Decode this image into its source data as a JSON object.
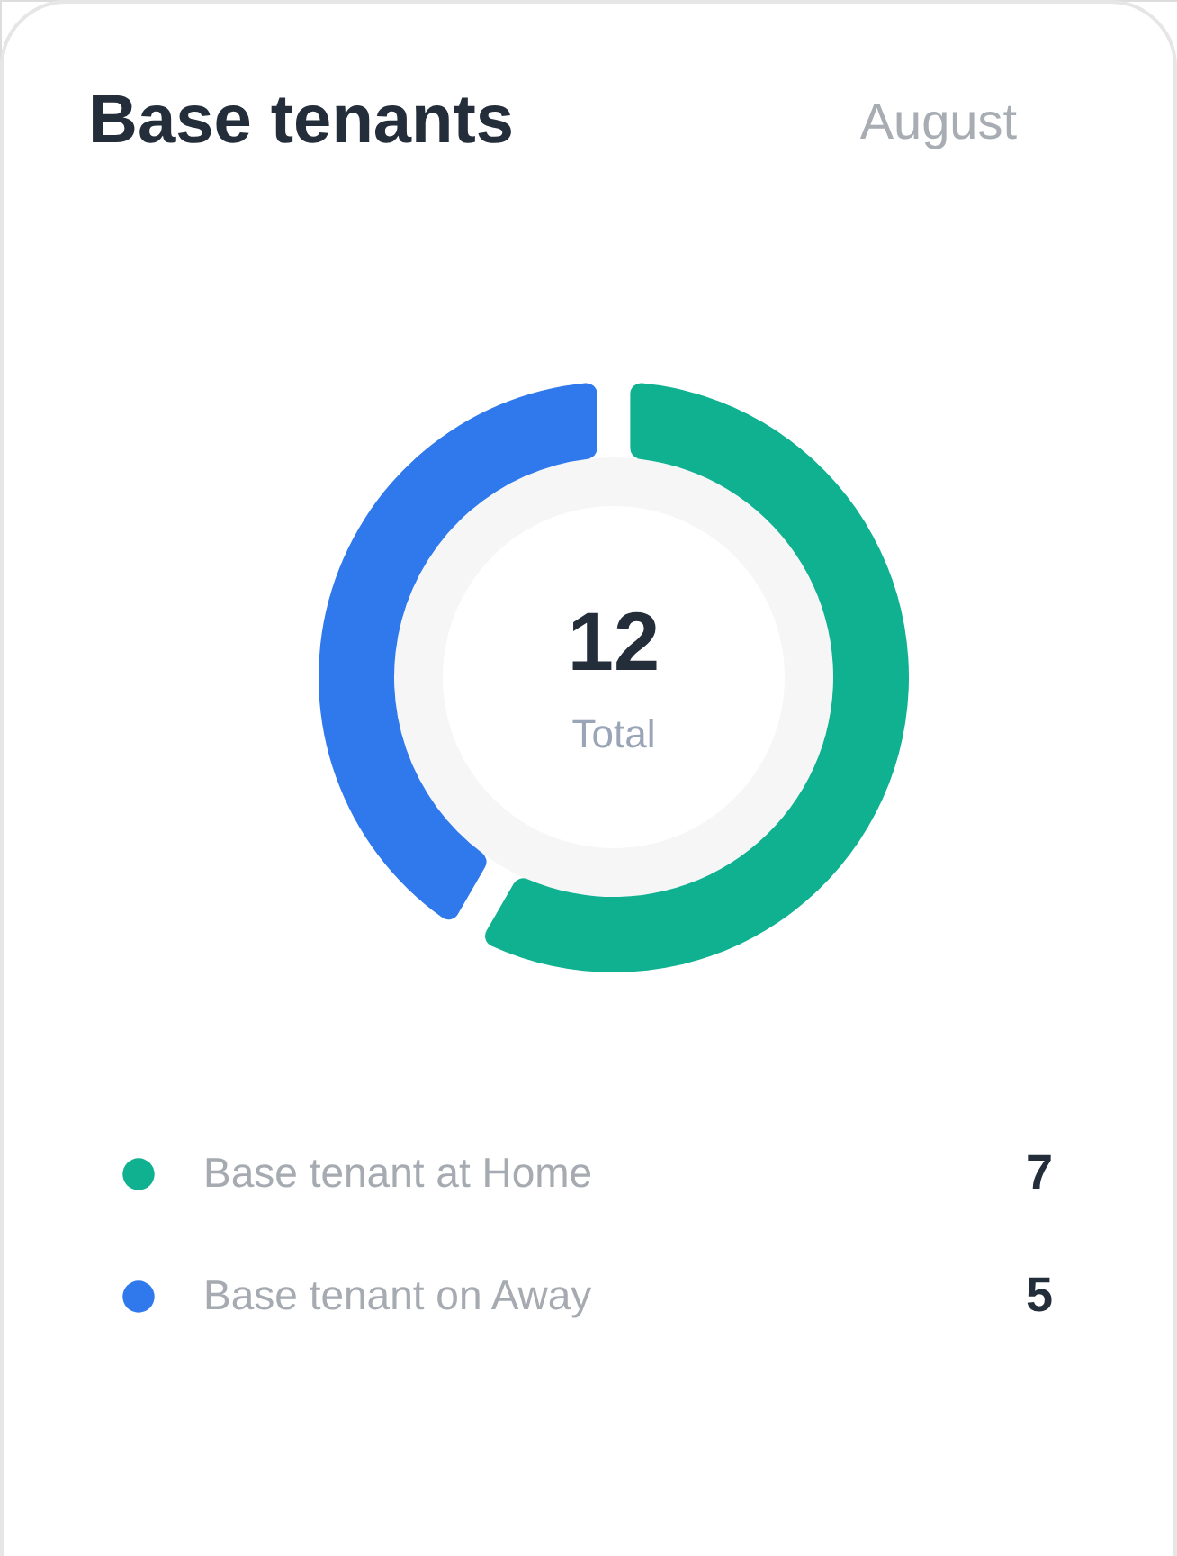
{
  "chart_data": {
    "type": "donut",
    "title": "Base tenants",
    "subtitle": "August",
    "categories": [
      "Base tenant at Home",
      "Base tenant on Away"
    ],
    "values": [
      7,
      5
    ],
    "colors": [
      "#0fb190",
      "#3079ec"
    ],
    "annotations": [
      "12",
      "Total"
    ],
    "legend": "bottom",
    "data_labels": true
  }
}
